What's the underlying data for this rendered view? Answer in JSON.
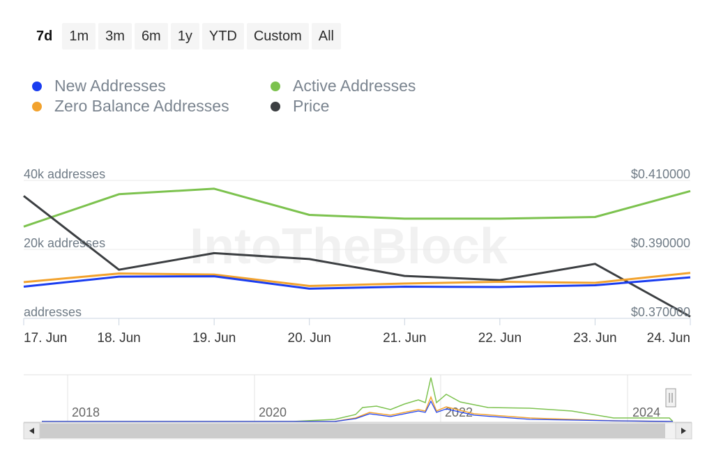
{
  "range_selector": {
    "buttons": [
      "7d",
      "1m",
      "3m",
      "6m",
      "1y",
      "YTD",
      "Custom",
      "All"
    ],
    "selected": "7d"
  },
  "legend": [
    {
      "label": "New Addresses",
      "color": "#1a3df0"
    },
    {
      "label": "Active Addresses",
      "color": "#7cc24e"
    },
    {
      "label": "Zero Balance Addresses",
      "color": "#f2a22d"
    },
    {
      "label": "Price",
      "color": "#3c3f42"
    }
  ],
  "watermark": "IntoTheBlock",
  "chart_data": {
    "type": "line",
    "categories": [
      "17. Jun",
      "18. Jun",
      "19. Jun",
      "20. Jun",
      "21. Jun",
      "22. Jun",
      "23. Jun",
      "24. Jun"
    ],
    "y_left": {
      "ticks": [
        40000,
        20000,
        0
      ],
      "tick_labels": [
        "40k addresses",
        "20k addresses",
        "addresses"
      ],
      "range": [
        0,
        40000
      ]
    },
    "y_right": {
      "ticks": [
        0.41,
        0.39,
        0.37
      ],
      "tick_labels": [
        "$0.410000",
        "$0.390000",
        "$0.370000"
      ],
      "range": [
        0.37,
        0.41
      ]
    },
    "series": [
      {
        "name": "New Addresses",
        "axis": "left",
        "color": "#1a3df0",
        "values": [
          9200,
          12100,
          12200,
          8600,
          9200,
          9100,
          9600,
          11900
        ]
      },
      {
        "name": "Active Addresses",
        "axis": "left",
        "color": "#7cc24e",
        "values": [
          26600,
          36000,
          37600,
          30000,
          28900,
          28900,
          29400,
          36900
        ]
      },
      {
        "name": "Zero Balance Addresses",
        "axis": "left",
        "color": "#f2a22d",
        "values": [
          10500,
          13000,
          12700,
          9400,
          10100,
          10600,
          10300,
          13200
        ]
      },
      {
        "name": "Price",
        "axis": "right",
        "color": "#3c3f42",
        "values": [
          0.4055,
          0.3841,
          0.3889,
          0.3872,
          0.3823,
          0.3811,
          0.3858,
          0.3705
        ]
      }
    ],
    "grid": true
  },
  "navigator": {
    "year_labels": [
      "2018",
      "2020",
      "2022",
      "2024"
    ]
  }
}
